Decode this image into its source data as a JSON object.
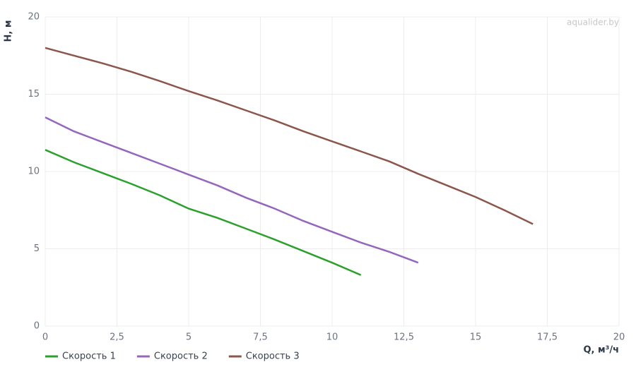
{
  "chart_data": {
    "type": "line",
    "watermark": "aqualider.by",
    "x_label": "Q, м³/ч",
    "y_label": "H, м",
    "xlim": [
      0,
      20
    ],
    "ylim": [
      0,
      20
    ],
    "xticks": [
      0,
      {
        "value": 2.5,
        "label": "2,5"
      },
      5,
      {
        "value": 7.5,
        "label": "7,5"
      },
      10,
      {
        "value": 12.5,
        "label": "12,5"
      },
      15,
      {
        "value": 17.5,
        "label": "17,5"
      },
      20
    ],
    "yticks": [
      0,
      5,
      10,
      15,
      20
    ],
    "grid": true,
    "series": [
      {
        "name": "Скорость 1",
        "color": "#2ca02c",
        "x": [
          0,
          1,
          2,
          3,
          4,
          5,
          6,
          7,
          8,
          9,
          10,
          11
        ],
        "values": [
          11.4,
          10.6,
          9.9,
          9.2,
          8.45,
          7.6,
          7.0,
          6.3,
          5.6,
          4.85,
          4.1,
          3.3
        ]
      },
      {
        "name": "Скорость 2",
        "color": "#9467bd",
        "x": [
          0,
          1,
          2,
          3,
          4,
          5,
          6,
          7,
          8,
          9,
          10,
          11,
          12,
          13
        ],
        "values": [
          13.5,
          12.6,
          11.9,
          11.2,
          10.5,
          9.8,
          9.1,
          8.3,
          7.6,
          6.8,
          6.1,
          5.4,
          4.8,
          4.1
        ]
      },
      {
        "name": "Скорость 3",
        "color": "#8c564b",
        "x": [
          0,
          1,
          2,
          3,
          4,
          5,
          6,
          7,
          8,
          9,
          10,
          11,
          12,
          13,
          14,
          15,
          16,
          17
        ],
        "values": [
          18.0,
          17.5,
          17.0,
          16.45,
          15.85,
          15.2,
          14.6,
          13.95,
          13.3,
          12.6,
          11.95,
          11.3,
          10.65,
          9.85,
          9.1,
          8.35,
          7.5,
          6.6
        ]
      }
    ]
  }
}
